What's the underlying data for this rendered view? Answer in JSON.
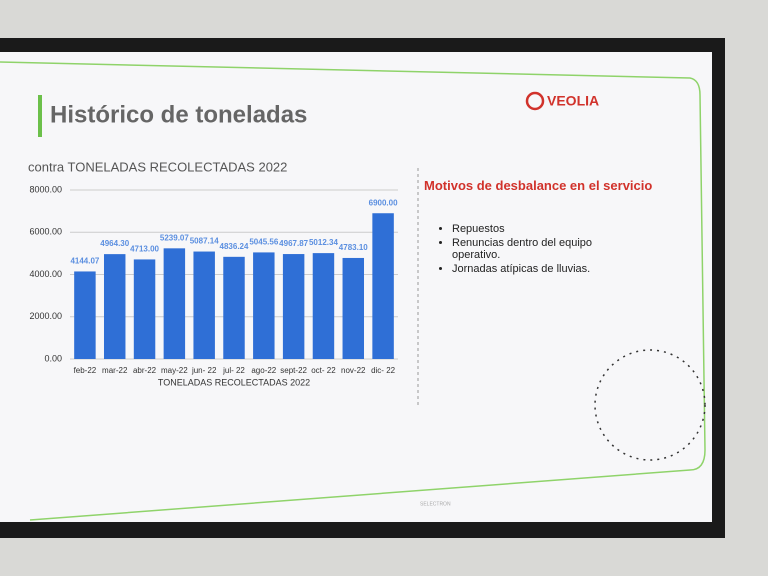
{
  "slide": {
    "title": "Histórico de toneladas",
    "logo": "VEOLIA",
    "panel_title": "Motivos de desbalance en el servicio",
    "bullets": [
      "Repuestos",
      "Renuncias dentro del equipo operativo.",
      "Jornadas atípicas de lluvias."
    ]
  },
  "tv": {
    "brand": "SELECTRON"
  },
  "chart_data": {
    "type": "bar",
    "title": "contra TONELADAS RECOLECTADAS 2022",
    "x_label": "TONELADAS RECOLECTADAS 2022",
    "categories": [
      "feb-22",
      "mar-22",
      "abr-22",
      "may-22",
      "jun- 22",
      "jul- 22",
      "ago-22",
      "sept-22",
      "oct- 22",
      "nov-22",
      "dic- 22"
    ],
    "values": [
      4144.07,
      4964.3,
      4713.0,
      5239.07,
      5087.14,
      4836.24,
      5045.56,
      4967.87,
      5012.34,
      4783.1,
      6900.0
    ],
    "value_labels": [
      "4144.07",
      "4964.30",
      "4713.00",
      "5239.07",
      "5087.14",
      "4836.24",
      "5045.56",
      "4967.87",
      "5012.34",
      "4783.10",
      "6900.00"
    ],
    "color": "#2f6fd6",
    "label_color": "#5b8fe0",
    "ylim": [
      0,
      8000
    ],
    "yticks": [
      {
        "value": 0,
        "label": "0.00"
      },
      {
        "value": 2000,
        "label": "2000.00"
      },
      {
        "value": 4000,
        "label": "4000.00"
      },
      {
        "value": 6000,
        "label": "6000.00"
      },
      {
        "value": 8000,
        "label": "8000.00"
      }
    ],
    "grid": true
  }
}
